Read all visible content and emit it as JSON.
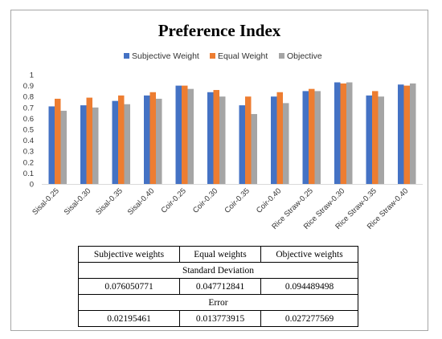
{
  "chart_data": {
    "type": "bar",
    "title": "Preference Index",
    "categories": [
      "Sisal-0.25",
      "Sisal-0.30",
      "Sisal-0.35",
      "Sisal-0.40",
      "Coir-0.25",
      "Coir-0.30",
      "Coir-0.35",
      "Coir-0.40",
      "Rice Straw-0.25",
      "Rice Straw-0.30",
      "Rice Straw-0.35",
      "Rice Straw-0.40"
    ],
    "series": [
      {
        "name": "Subjective Weight",
        "color": "#4472c4",
        "values": [
          0.71,
          0.72,
          0.76,
          0.81,
          0.9,
          0.84,
          0.72,
          0.8,
          0.85,
          0.93,
          0.81,
          0.91
        ]
      },
      {
        "name": "Equal Weight",
        "color": "#ed7d31",
        "values": [
          0.78,
          0.79,
          0.81,
          0.84,
          0.9,
          0.86,
          0.8,
          0.84,
          0.87,
          0.92,
          0.85,
          0.9
        ]
      },
      {
        "name": "Objective",
        "color": "#a5a5a5",
        "values": [
          0.67,
          0.7,
          0.73,
          0.78,
          0.87,
          0.8,
          0.64,
          0.74,
          0.85,
          0.93,
          0.8,
          0.92
        ]
      }
    ],
    "ylim": [
      0,
      1
    ],
    "yticks": [
      "0",
      "0.1",
      "0.2",
      "0.3",
      "0.4",
      "0.5",
      "0.6",
      "0.7",
      "0.8",
      "0.9",
      "1"
    ],
    "legend_position": "top",
    "grid": false
  },
  "table": {
    "headers": [
      "Subjective weights",
      "Equal weights",
      "Objective weights"
    ],
    "section1_title": "Standard Deviation",
    "section1_values": [
      "0.076050771",
      "0.047712841",
      "0.094489498"
    ],
    "section2_title": "Error",
    "section2_values": [
      "0.02195461",
      "0.013773915",
      "0.027277569"
    ]
  }
}
